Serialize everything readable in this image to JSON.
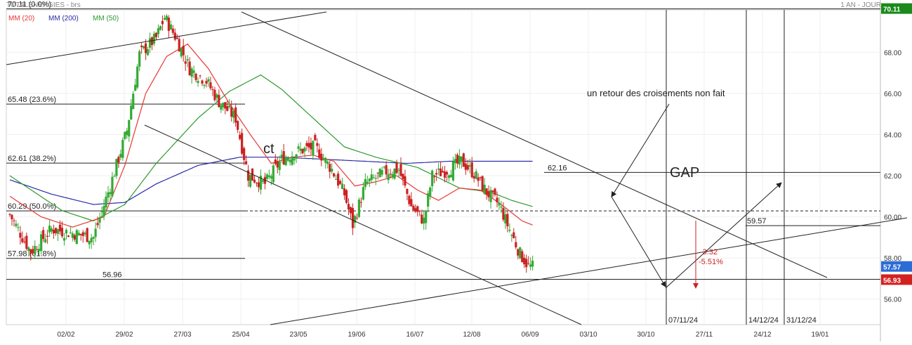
{
  "header": {
    "symbol": "TOTALENERGIES - brs",
    "timeframe": "1 AN - JOUR",
    "overlap_text": "70.11 (0.0%)"
  },
  "legend": [
    {
      "label": "MM (20)",
      "color": "#e53935"
    },
    {
      "label": "MM (200)",
      "color": "#2b2ba8"
    },
    {
      "label": "MM (50)",
      "color": "#2e9a2e"
    }
  ],
  "colors": {
    "up": "#33aa33",
    "down": "#cc2222",
    "mm20": "#e53935",
    "mm50": "#2e9a2e",
    "mm200": "#2b2ba8"
  },
  "chart_data": {
    "type": "candlestick",
    "y_axis": {
      "range": [
        55.1,
        70.6
      ],
      "ticks": [
        "56.00",
        "58.00",
        "60.00",
        "62.00",
        "64.00",
        "66.00",
        "68.00"
      ]
    },
    "x_axis": {
      "labels": [
        "02/02",
        "29/02",
        "27/03",
        "25/04",
        "23/05",
        "19/06",
        "16/07",
        "12/08",
        "06/09",
        "03/10",
        "30/10",
        "27/11",
        "24/12",
        "19/01"
      ]
    },
    "price_badges": [
      {
        "value": "70.11",
        "price": 70.11,
        "color": "#1a8a1a"
      },
      {
        "value": "57.57",
        "price": 57.57,
        "color": "#2b6cd6"
      },
      {
        "value": "56.93",
        "price": 56.93,
        "color": "#d32020"
      }
    ],
    "fibonacci": [
      {
        "label": "70.11 (0.0%)",
        "price": 70.11
      },
      {
        "label": "65.48 (23.6%)",
        "price": 65.48
      },
      {
        "label": "62.61 (38.2%)",
        "price": 62.61
      },
      {
        "label": "60.29 (50.0%)",
        "price": 60.29
      },
      {
        "label": "57.98 (61.8%)",
        "price": 57.98
      }
    ],
    "levels": [
      {
        "label": "56.96",
        "price": 56.96
      },
      {
        "label": "62.16",
        "price": 62.16
      },
      {
        "label": "59.57",
        "price": 59.57
      }
    ],
    "date_markers": [
      "07/11/24",
      "14/12/24",
      "31/12/24"
    ],
    "annotations": {
      "ct": "ct",
      "gap": "GAP",
      "note": "un retour des croisements non fait",
      "drop": "-3.32",
      "drop_pct": "-5.51%"
    },
    "series_keypoints": {
      "close": [
        [
          0,
          60.1
        ],
        [
          10,
          58.3
        ],
        [
          20,
          59.4
        ],
        [
          30,
          59.2
        ],
        [
          40,
          59.0
        ],
        [
          48,
          61.5
        ],
        [
          56,
          64.2
        ],
        [
          62,
          67.9
        ],
        [
          70,
          68.7
        ],
        [
          74,
          69.7
        ],
        [
          80,
          68.6
        ],
        [
          86,
          67.2
        ],
        [
          94,
          66.6
        ],
        [
          100,
          65.6
        ],
        [
          108,
          64.8
        ],
        [
          114,
          62.0
        ],
        [
          122,
          61.6
        ],
        [
          130,
          62.8
        ],
        [
          138,
          63.2
        ],
        [
          146,
          63.4
        ],
        [
          154,
          62.3
        ],
        [
          160,
          61.1
        ],
        [
          164,
          59.6
        ],
        [
          170,
          61.6
        ],
        [
          180,
          62.2
        ],
        [
          186,
          62.3
        ],
        [
          192,
          60.5
        ],
        [
          198,
          59.8
        ],
        [
          202,
          62.0
        ],
        [
          210,
          62.3
        ],
        [
          216,
          62.7
        ],
        [
          222,
          62.1
        ],
        [
          228,
          61.2
        ],
        [
          234,
          60.6
        ],
        [
          238,
          59.6
        ],
        [
          244,
          58.2
        ],
        [
          248,
          57.6
        ],
        [
          250,
          57.57
        ]
      ],
      "mm20": [
        [
          0,
          61.0
        ],
        [
          15,
          60.0
        ],
        [
          30,
          59.5
        ],
        [
          45,
          60.0
        ],
        [
          55,
          62.5
        ],
        [
          65,
          66.0
        ],
        [
          75,
          67.8
        ],
        [
          85,
          68.4
        ],
        [
          95,
          67.2
        ],
        [
          105,
          65.5
        ],
        [
          115,
          64.0
        ],
        [
          125,
          62.6
        ],
        [
          135,
          62.9
        ],
        [
          145,
          63.0
        ],
        [
          155,
          62.7
        ],
        [
          165,
          61.5
        ],
        [
          175,
          61.7
        ],
        [
          185,
          62.0
        ],
        [
          195,
          61.3
        ],
        [
          205,
          60.8
        ],
        [
          215,
          61.4
        ],
        [
          225,
          61.3
        ],
        [
          235,
          60.6
        ],
        [
          245,
          59.8
        ],
        [
          250,
          59.6
        ]
      ],
      "mm50": [
        [
          0,
          62.0
        ],
        [
          25,
          60.3
        ],
        [
          40,
          59.8
        ],
        [
          55,
          60.6
        ],
        [
          70,
          62.6
        ],
        [
          90,
          64.8
        ],
        [
          105,
          66.1
        ],
        [
          120,
          66.9
        ],
        [
          130,
          66.2
        ],
        [
          145,
          64.8
        ],
        [
          160,
          63.4
        ],
        [
          175,
          62.9
        ],
        [
          195,
          62.4
        ],
        [
          215,
          61.4
        ],
        [
          230,
          61.2
        ],
        [
          240,
          60.8
        ],
        [
          250,
          60.5
        ]
      ],
      "mm200": [
        [
          0,
          61.8
        ],
        [
          20,
          61.1
        ],
        [
          40,
          60.6
        ],
        [
          55,
          60.7
        ],
        [
          70,
          61.6
        ],
        [
          90,
          62.5
        ],
        [
          110,
          62.9
        ],
        [
          130,
          62.9
        ],
        [
          150,
          62.8
        ],
        [
          170,
          62.7
        ],
        [
          190,
          62.6
        ],
        [
          210,
          62.7
        ],
        [
          230,
          62.7
        ],
        [
          250,
          62.7
        ]
      ]
    }
  }
}
